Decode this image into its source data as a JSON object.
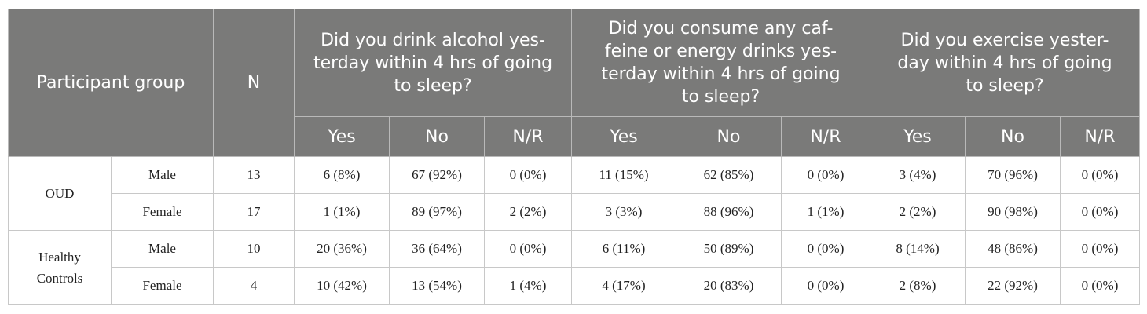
{
  "header": {
    "participant_group": "Participant group",
    "n": "N",
    "questions": [
      "Did you drink alcohol yes-terday within 4 hrs of going to sleep?",
      "Did you consume any caf-feine or energy drinks yes-terday within 4 hrs of going to sleep?",
      "Did you exercise yester-day within 4 hrs of going to sleep?"
    ],
    "sub": {
      "yes": "Yes",
      "no": "No",
      "nr": "N/R"
    }
  },
  "groups": [
    {
      "label": "OUD",
      "rows": [
        {
          "sex": "Male",
          "n": "13",
          "alc": [
            "6 (8%)",
            "67 (92%)",
            "0 (0%)"
          ],
          "caf": [
            "11 (15%)",
            "62 (85%)",
            "0 (0%)"
          ],
          "ex": [
            "3 (4%)",
            "70 (96%)",
            "0 (0%)"
          ]
        },
        {
          "sex": "Female",
          "n": "17",
          "alc": [
            "1 (1%)",
            "89 (97%)",
            "2 (2%)"
          ],
          "caf": [
            "3 (3%)",
            "88 (96%)",
            "1 (1%)"
          ],
          "ex": [
            "2 (2%)",
            "90 (98%)",
            "0 (0%)"
          ]
        }
      ]
    },
    {
      "label": "Healthy Controls",
      "rows": [
        {
          "sex": "Male",
          "n": "10",
          "alc": [
            "20 (36%)",
            "36 (64%)",
            "0 (0%)"
          ],
          "caf": [
            "6 (11%)",
            "50 (89%)",
            "0 (0%)"
          ],
          "ex": [
            "8 (14%)",
            "48 (86%)",
            "0 (0%)"
          ]
        },
        {
          "sex": "Female",
          "n": "4",
          "alc": [
            "10 (42%)",
            "13 (54%)",
            "1 (4%)"
          ],
          "caf": [
            "4 (17%)",
            "20 (83%)",
            "0 (0%)"
          ],
          "ex": [
            "2 (8%)",
            "22 (92%)",
            "0 (0%)"
          ]
        }
      ]
    }
  ]
}
